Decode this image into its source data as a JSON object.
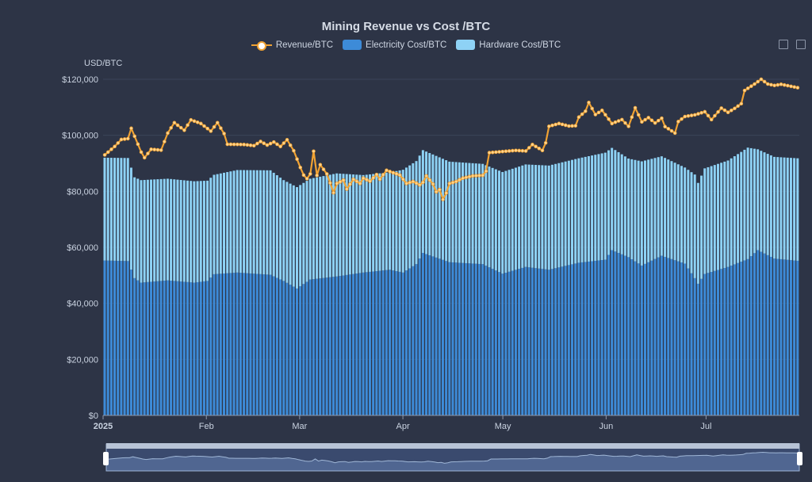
{
  "colors": {
    "background": "#2d3446",
    "revenue": "#f0a233",
    "electricity": "#3d8bd8",
    "hardware": "#8ed2f5",
    "grid": "#3c4458",
    "axis_text": "#c9d2e0"
  },
  "icons": [
    "zoom-icon",
    "restore-icon"
  ],
  "chart_data": {
    "type": "bar",
    "title": "Mining Revenue vs Cost /BTC",
    "ylabel": "USD/BTC",
    "xlabel": "",
    "ylim": [
      0,
      120000
    ],
    "yticks": [
      "$0",
      "$20,000",
      "$40,000",
      "$60,000",
      "$80,000",
      "$100,000",
      "$120,000"
    ],
    "ytick_values": [
      0,
      20000,
      40000,
      60000,
      80000,
      100000,
      120000
    ],
    "stacked": true,
    "grid": true,
    "legend_position": "top",
    "datazoom_slider": true,
    "x_start": "2025-01-01",
    "x_end": "2025-07-29",
    "xticks": [
      {
        "label": "2025",
        "date": "2025-01-01"
      },
      {
        "label": "Feb",
        "date": "2025-02-01"
      },
      {
        "label": "Mar",
        "date": "2025-03-01"
      },
      {
        "label": "Apr",
        "date": "2025-04-01"
      },
      {
        "label": "May",
        "date": "2025-05-01"
      },
      {
        "label": "Jun",
        "date": "2025-06-01"
      },
      {
        "label": "Jul",
        "date": "2025-07-01"
      }
    ],
    "series": [
      {
        "name": "Electricity Cost/BTC",
        "type": "bar",
        "color": "#3d8bd8",
        "points": [
          [
            "2025-01-01",
            55300
          ],
          [
            "2025-01-08",
            55100
          ],
          [
            "2025-01-10",
            49000
          ],
          [
            "2025-01-12",
            47400
          ],
          [
            "2025-01-20",
            48200
          ],
          [
            "2025-01-28",
            47400
          ],
          [
            "2025-02-01",
            48000
          ],
          [
            "2025-02-03",
            50400
          ],
          [
            "2025-02-10",
            51000
          ],
          [
            "2025-02-20",
            50200
          ],
          [
            "2025-02-24",
            48000
          ],
          [
            "2025-02-28",
            45300
          ],
          [
            "2025-03-04",
            48500
          ],
          [
            "2025-03-12",
            49600
          ],
          [
            "2025-03-20",
            51000
          ],
          [
            "2025-03-28",
            52000
          ],
          [
            "2025-04-01",
            51000
          ],
          [
            "2025-04-05",
            54000
          ],
          [
            "2025-04-07",
            58000
          ],
          [
            "2025-04-15",
            54700
          ],
          [
            "2025-04-25",
            54000
          ],
          [
            "2025-05-01",
            50600
          ],
          [
            "2025-05-08",
            53000
          ],
          [
            "2025-05-15",
            52000
          ],
          [
            "2025-05-24",
            54500
          ],
          [
            "2025-06-01",
            55600
          ],
          [
            "2025-06-03",
            59000
          ],
          [
            "2025-06-08",
            56500
          ],
          [
            "2025-06-12",
            53500
          ],
          [
            "2025-06-18",
            57000
          ],
          [
            "2025-06-25",
            54200
          ],
          [
            "2025-06-28",
            49000
          ],
          [
            "2025-06-29",
            47000
          ],
          [
            "2025-07-01",
            50500
          ],
          [
            "2025-07-08",
            53000
          ],
          [
            "2025-07-14",
            55800
          ],
          [
            "2025-07-17",
            59000
          ],
          [
            "2025-07-22",
            56000
          ],
          [
            "2025-07-29",
            55200
          ]
        ]
      },
      {
        "name": "Hardware Cost/BTC",
        "type": "bar",
        "color": "#8ed2f5",
        "points": [
          [
            "2025-01-01",
            36700
          ],
          [
            "2025-01-08",
            36800
          ],
          [
            "2025-01-10",
            36000
          ],
          [
            "2025-01-12",
            36600
          ],
          [
            "2025-01-20",
            36300
          ],
          [
            "2025-01-28",
            36200
          ],
          [
            "2025-02-01",
            35800
          ],
          [
            "2025-02-03",
            35500
          ],
          [
            "2025-02-10",
            36600
          ],
          [
            "2025-02-20",
            37300
          ],
          [
            "2025-02-24",
            36000
          ],
          [
            "2025-02-28",
            36200
          ],
          [
            "2025-03-04",
            36000
          ],
          [
            "2025-03-12",
            36800
          ],
          [
            "2025-03-20",
            34800
          ],
          [
            "2025-03-28",
            34800
          ],
          [
            "2025-04-01",
            36700
          ],
          [
            "2025-04-05",
            36800
          ],
          [
            "2025-04-07",
            36700
          ],
          [
            "2025-04-15",
            35900
          ],
          [
            "2025-04-25",
            35800
          ],
          [
            "2025-05-01",
            36300
          ],
          [
            "2025-05-08",
            36600
          ],
          [
            "2025-05-15",
            37200
          ],
          [
            "2025-05-24",
            37300
          ],
          [
            "2025-06-01",
            38200
          ],
          [
            "2025-06-03",
            36500
          ],
          [
            "2025-06-08",
            35200
          ],
          [
            "2025-06-12",
            37200
          ],
          [
            "2025-06-18",
            35500
          ],
          [
            "2025-06-25",
            34300
          ],
          [
            "2025-06-28",
            37000
          ],
          [
            "2025-06-29",
            36000
          ],
          [
            "2025-07-01",
            37700
          ],
          [
            "2025-07-08",
            38000
          ],
          [
            "2025-07-14",
            39800
          ],
          [
            "2025-07-17",
            36000
          ],
          [
            "2025-07-22",
            36300
          ],
          [
            "2025-07-29",
            36600
          ]
        ]
      },
      {
        "name": "Revenue/BTC",
        "type": "line",
        "color": "#f0a233",
        "points": [
          [
            "2025-01-01",
            93000
          ],
          [
            "2025-01-04",
            96000
          ],
          [
            "2025-01-06",
            98500
          ],
          [
            "2025-01-08",
            98800
          ],
          [
            "2025-01-09",
            102500
          ],
          [
            "2025-01-12",
            94000
          ],
          [
            "2025-01-13",
            92000
          ],
          [
            "2025-01-15",
            95000
          ],
          [
            "2025-01-18",
            94700
          ],
          [
            "2025-01-20",
            100800
          ],
          [
            "2025-01-22",
            104500
          ],
          [
            "2025-01-25",
            101800
          ],
          [
            "2025-01-27",
            105500
          ],
          [
            "2025-01-30",
            104200
          ],
          [
            "2025-02-02",
            101500
          ],
          [
            "2025-02-04",
            104500
          ],
          [
            "2025-02-06",
            100600
          ],
          [
            "2025-02-07",
            96800
          ],
          [
            "2025-02-12",
            96700
          ],
          [
            "2025-02-15",
            96300
          ],
          [
            "2025-02-17",
            97800
          ],
          [
            "2025-02-19",
            96500
          ],
          [
            "2025-02-21",
            97600
          ],
          [
            "2025-02-23",
            96000
          ],
          [
            "2025-02-25",
            98400
          ],
          [
            "2025-02-27",
            94500
          ],
          [
            "2025-03-01",
            88500
          ],
          [
            "2025-03-02",
            85800
          ],
          [
            "2025-03-03",
            84500
          ],
          [
            "2025-03-04",
            86200
          ],
          [
            "2025-03-05",
            94300
          ],
          [
            "2025-03-06",
            85700
          ],
          [
            "2025-03-07",
            89500
          ],
          [
            "2025-03-09",
            86200
          ],
          [
            "2025-03-10",
            83000
          ],
          [
            "2025-03-11",
            79500
          ],
          [
            "2025-03-12",
            82800
          ],
          [
            "2025-03-14",
            84000
          ],
          [
            "2025-03-15",
            80800
          ],
          [
            "2025-03-17",
            84300
          ],
          [
            "2025-03-19",
            82800
          ],
          [
            "2025-03-20",
            84700
          ],
          [
            "2025-03-22",
            83600
          ],
          [
            "2025-03-24",
            86000
          ],
          [
            "2025-03-25",
            84300
          ],
          [
            "2025-03-27",
            87500
          ],
          [
            "2025-03-31",
            85800
          ],
          [
            "2025-04-02",
            82800
          ],
          [
            "2025-04-04",
            83500
          ],
          [
            "2025-04-06",
            82300
          ],
          [
            "2025-04-07",
            83200
          ],
          [
            "2025-04-08",
            85500
          ],
          [
            "2025-04-10",
            82600
          ],
          [
            "2025-04-11",
            79800
          ],
          [
            "2025-04-12",
            80600
          ],
          [
            "2025-04-13",
            77100
          ],
          [
            "2025-04-14",
            79400
          ],
          [
            "2025-04-15",
            82800
          ],
          [
            "2025-04-17",
            83500
          ],
          [
            "2025-04-19",
            84700
          ],
          [
            "2025-04-22",
            85500
          ],
          [
            "2025-04-25",
            85700
          ],
          [
            "2025-04-26",
            87200
          ],
          [
            "2025-04-27",
            93800
          ],
          [
            "2025-05-02",
            94300
          ],
          [
            "2025-05-05",
            94600
          ],
          [
            "2025-05-08",
            94400
          ],
          [
            "2025-05-10",
            96700
          ],
          [
            "2025-05-13",
            94600
          ],
          [
            "2025-05-14",
            97300
          ],
          [
            "2025-05-15",
            103200
          ],
          [
            "2025-05-18",
            104200
          ],
          [
            "2025-05-21",
            103300
          ],
          [
            "2025-05-23",
            103400
          ],
          [
            "2025-05-24",
            106500
          ],
          [
            "2025-05-26",
            108600
          ],
          [
            "2025-05-27",
            111700
          ],
          [
            "2025-05-29",
            107400
          ],
          [
            "2025-05-31",
            108900
          ],
          [
            "2025-06-03",
            104200
          ],
          [
            "2025-06-06",
            105600
          ],
          [
            "2025-06-08",
            103200
          ],
          [
            "2025-06-10",
            109800
          ],
          [
            "2025-06-12",
            104800
          ],
          [
            "2025-06-14",
            106300
          ],
          [
            "2025-06-16",
            104400
          ],
          [
            "2025-06-18",
            106100
          ],
          [
            "2025-06-19",
            103100
          ],
          [
            "2025-06-22",
            100800
          ],
          [
            "2025-06-23",
            104900
          ],
          [
            "2025-06-25",
            106700
          ],
          [
            "2025-06-28",
            107300
          ],
          [
            "2025-07-01",
            108400
          ],
          [
            "2025-07-03",
            105600
          ],
          [
            "2025-07-06",
            109700
          ],
          [
            "2025-07-08",
            108200
          ],
          [
            "2025-07-10",
            109600
          ],
          [
            "2025-07-12",
            111300
          ],
          [
            "2025-07-13",
            116000
          ],
          [
            "2025-07-16",
            118300
          ],
          [
            "2025-07-18",
            120000
          ],
          [
            "2025-07-20",
            118300
          ],
          [
            "2025-07-22",
            117800
          ],
          [
            "2025-07-24",
            118200
          ],
          [
            "2025-07-29",
            117000
          ]
        ]
      }
    ]
  }
}
